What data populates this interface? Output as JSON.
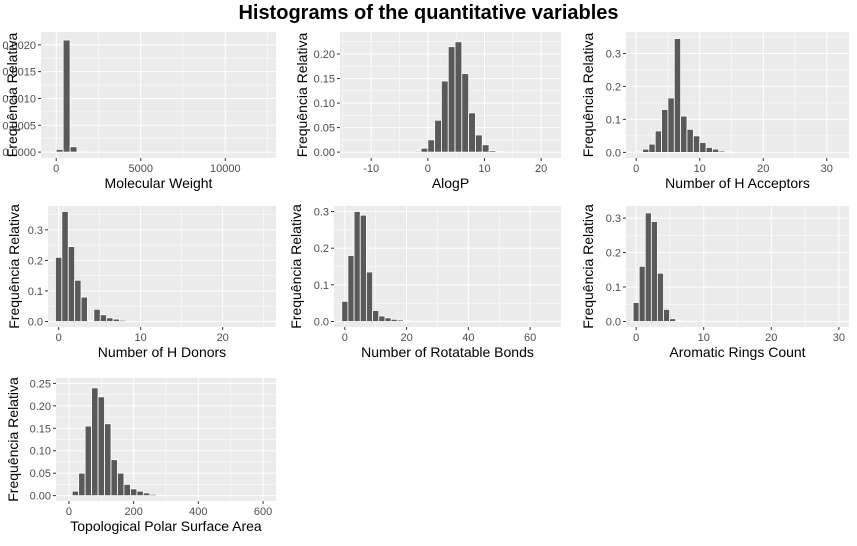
{
  "title": "Histograms of the quantitative variables",
  "colors": {
    "panel_bg": "#ebebeb",
    "grid": "#ffffff",
    "bar": "#595959",
    "bar_edge": "#ffffff",
    "axis_text": "#4d4d4d",
    "label_text": "#000000"
  },
  "chart_data": [
    {
      "type": "bar",
      "xlabel": "Molecular Weight",
      "ylabel": "Frequência Relativa",
      "xlim": [
        -900,
        13000
      ],
      "ylim": [
        -0.00011,
        0.00224
      ],
      "xticks": [
        0,
        5000,
        10000
      ],
      "xtick_labels": [
        "0",
        "5000",
        "10000"
      ],
      "yticks": [
        0,
        0.0005,
        0.001,
        0.0015,
        0.002
      ],
      "ytick_labels": [
        "0.0000",
        "0.0005",
        "0.0010",
        "0.0015",
        "0.0020"
      ],
      "bin_width": 410,
      "bins": [
        [
          0,
          5e-05
        ],
        [
          410,
          0.00209
        ],
        [
          820,
          0.0001
        ],
        [
          1230,
          5e-06
        ]
      ]
    },
    {
      "type": "bar",
      "xlabel": "AlogP",
      "ylabel": "Frequência Relativa",
      "xlim": [
        -15.5,
        23.5
      ],
      "ylim": [
        -0.012,
        0.245
      ],
      "xticks": [
        -10,
        0,
        10,
        20
      ],
      "xtick_labels": [
        "-10",
        "0",
        "10",
        "20"
      ],
      "yticks": [
        0,
        0.05,
        0.1,
        0.15,
        0.2
      ],
      "ytick_labels": [
        "0.00",
        "0.05",
        "0.10",
        "0.15",
        "0.20"
      ],
      "bin_width": 1.2,
      "bins": [
        [
          -2.4,
          0.002
        ],
        [
          -1.2,
          0.008
        ],
        [
          0,
          0.025
        ],
        [
          1.2,
          0.065
        ],
        [
          2.4,
          0.145
        ],
        [
          3.6,
          0.215
        ],
        [
          4.8,
          0.225
        ],
        [
          6.0,
          0.16
        ],
        [
          7.2,
          0.08
        ],
        [
          8.4,
          0.035
        ],
        [
          9.6,
          0.015
        ],
        [
          10.8,
          0.003
        ],
        [
          12,
          0.001
        ]
      ]
    },
    {
      "type": "bar",
      "xlabel": "Number of H Acceptors",
      "ylabel": "Frequência Relativa",
      "xlim": [
        -1.6,
        33.5
      ],
      "ylim": [
        -0.017,
        0.365
      ],
      "xticks": [
        0,
        10,
        20,
        30
      ],
      "xtick_labels": [
        "0",
        "10",
        "20",
        "30"
      ],
      "yticks": [
        0,
        0.1,
        0.2,
        0.3
      ],
      "ytick_labels": [
        "0.0",
        "0.1",
        "0.2",
        "0.3"
      ],
      "bin_width": 1.0,
      "bins": [
        [
          0,
          0.002
        ],
        [
          1,
          0.01
        ],
        [
          2,
          0.025
        ],
        [
          3,
          0.065
        ],
        [
          4,
          0.13
        ],
        [
          5,
          0.165
        ],
        [
          6,
          0.345
        ],
        [
          7,
          0.11
        ],
        [
          8,
          0.07
        ],
        [
          9,
          0.05
        ],
        [
          10,
          0.03
        ],
        [
          11,
          0.015
        ],
        [
          12,
          0.01
        ],
        [
          13,
          0.004
        ],
        [
          14,
          0.002
        ]
      ]
    },
    {
      "type": "bar",
      "xlabel": "Number of H Donors",
      "ylabel": "Frequência Relativa",
      "xlim": [
        -1.3,
        26.5
      ],
      "ylim": [
        -0.018,
        0.378
      ],
      "xticks": [
        0,
        10,
        20
      ],
      "xtick_labels": [
        "0",
        "10",
        "20"
      ],
      "yticks": [
        0,
        0.1,
        0.2,
        0.3
      ],
      "ytick_labels": [
        "0.0",
        "0.1",
        "0.2",
        "0.3"
      ],
      "bin_width": 0.78,
      "bins": [
        [
          -0.39,
          0.21
        ],
        [
          0.39,
          0.36
        ],
        [
          1.17,
          0.245
        ],
        [
          1.95,
          0.135
        ],
        [
          2.73,
          0.08
        ],
        [
          3.51,
          0.002
        ],
        [
          4.29,
          0.04
        ],
        [
          5.07,
          0.022
        ],
        [
          5.85,
          0.012
        ],
        [
          6.63,
          0.008
        ],
        [
          7.41,
          0.004
        ]
      ]
    },
    {
      "type": "bar",
      "xlabel": "Number of Rotatable Bonds",
      "ylabel": "Frequência Relativa",
      "xlim": [
        -3.5,
        70
      ],
      "ylim": [
        -0.015,
        0.315
      ],
      "xticks": [
        0,
        20,
        40,
        60
      ],
      "xtick_labels": [
        "0",
        "20",
        "40",
        "60"
      ],
      "yticks": [
        0,
        0.1,
        0.2,
        0.3
      ],
      "ytick_labels": [
        "0.0",
        "0.1",
        "0.2",
        "0.3"
      ],
      "bin_width": 2.0,
      "bins": [
        [
          -1,
          0.055
        ],
        [
          1,
          0.18
        ],
        [
          3,
          0.3
        ],
        [
          5,
          0.29
        ],
        [
          7,
          0.135
        ],
        [
          9,
          0.03
        ],
        [
          11,
          0.015
        ],
        [
          13,
          0.01
        ],
        [
          15,
          0.006
        ],
        [
          17,
          0.004
        ],
        [
          19,
          0.002
        ]
      ]
    },
    {
      "type": "bar",
      "xlabel": "Aromatic Rings Count",
      "ylabel": "Frequência Relativa",
      "xlim": [
        -1.5,
        31.5
      ],
      "ylim": [
        -0.016,
        0.335
      ],
      "xticks": [
        0,
        10,
        20,
        30
      ],
      "xtick_labels": [
        "0",
        "10",
        "20",
        "30"
      ],
      "yticks": [
        0,
        0.1,
        0.2,
        0.3
      ],
      "ytick_labels": [
        "0.0",
        "0.1",
        "0.2",
        "0.3"
      ],
      "bin_width": 0.9,
      "bins": [
        [
          -0.45,
          0.055
        ],
        [
          0.45,
          0.16
        ],
        [
          1.35,
          0.315
        ],
        [
          2.25,
          0.29
        ],
        [
          3.15,
          0.14
        ],
        [
          4.05,
          0.035
        ],
        [
          4.95,
          0.008
        ],
        [
          5.85,
          0.002
        ]
      ]
    },
    {
      "type": "bar",
      "xlabel": "Topological Polar Surface Area",
      "ylabel": "Frequência Relativa",
      "xlim": [
        -40,
        640
      ],
      "ylim": [
        -0.012,
        0.262
      ],
      "xticks": [
        0,
        200,
        400,
        600
      ],
      "xtick_labels": [
        "0",
        "200",
        "400",
        "600"
      ],
      "yticks": [
        0,
        0.05,
        0.1,
        0.15,
        0.2,
        0.25
      ],
      "ytick_labels": [
        "0.00",
        "0.05",
        "0.10",
        "0.15",
        "0.20",
        "0.25"
      ],
      "bin_width": 20,
      "bins": [
        [
          10,
          0.01
        ],
        [
          30,
          0.05
        ],
        [
          50,
          0.155
        ],
        [
          70,
          0.24
        ],
        [
          90,
          0.22
        ],
        [
          110,
          0.16
        ],
        [
          130,
          0.08
        ],
        [
          150,
          0.05
        ],
        [
          170,
          0.025
        ],
        [
          190,
          0.015
        ],
        [
          210,
          0.01
        ],
        [
          230,
          0.006
        ],
        [
          250,
          0.003
        ],
        [
          270,
          0.001
        ]
      ]
    }
  ]
}
